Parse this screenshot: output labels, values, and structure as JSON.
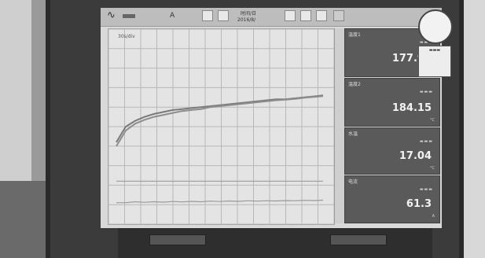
{
  "toolbar": {
    "mode": "A",
    "datetime_line1": "时间/日",
    "datetime_line2": "2016/8/"
  },
  "chart": {
    "scale_label": "30s/div"
  },
  "readouts": [
    {
      "tag": "温度1",
      "value": "177.92",
      "unit": "°C"
    },
    {
      "tag": "温度2",
      "value": "184.15",
      "unit": "°C"
    },
    {
      "tag": "水温",
      "value": "17.04",
      "unit": "°C"
    },
    {
      "tag": "电流",
      "value": "61.3",
      "unit": "A"
    }
  ],
  "icons": [
    "wave-icon",
    "record-icon",
    "disk-icon",
    "print-icon",
    "window-icon",
    "menu-icon"
  ],
  "chart_data": {
    "type": "line",
    "title": "",
    "xlabel": "",
    "ylabel": "",
    "grid": true,
    "series": [
      {
        "values": [
          0.42,
          0.5,
          0.53,
          0.55,
          0.565,
          0.575,
          0.585,
          0.59,
          0.595,
          0.6,
          0.605,
          0.61,
          0.615,
          0.62,
          0.625,
          0.63,
          0.635,
          0.64,
          0.64,
          0.645,
          0.65,
          0.655,
          0.66
        ]
      },
      {
        "values": [
          0.4,
          0.48,
          0.515,
          0.535,
          0.55,
          0.56,
          0.57,
          0.58,
          0.585,
          0.59,
          0.6,
          0.605,
          0.61,
          0.615,
          0.62,
          0.625,
          0.63,
          0.635,
          0.638,
          0.642,
          0.648,
          0.652,
          0.656
        ]
      },
      {
        "values": [
          0.22,
          0.22,
          0.22,
          0.22,
          0.22,
          0.22,
          0.22,
          0.22,
          0.22,
          0.22,
          0.22,
          0.22,
          0.22,
          0.22,
          0.22,
          0.22,
          0.22,
          0.22,
          0.22,
          0.22,
          0.22,
          0.22,
          0.22
        ]
      },
      {
        "values": [
          0.11,
          0.11,
          0.115,
          0.112,
          0.115,
          0.113,
          0.116,
          0.114,
          0.117,
          0.115,
          0.118,
          0.116,
          0.119,
          0.117,
          0.12,
          0.118,
          0.12,
          0.119,
          0.121,
          0.12,
          0.122,
          0.121,
          0.123
        ]
      }
    ],
    "ylim": [
      0,
      1
    ]
  }
}
